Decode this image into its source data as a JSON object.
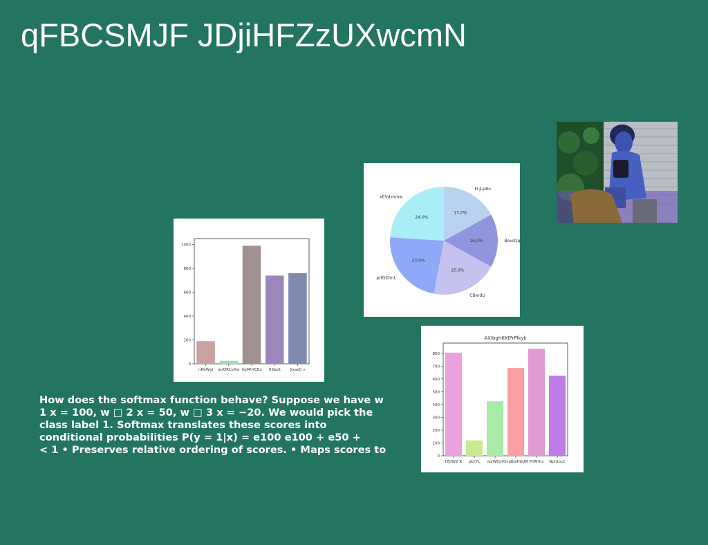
{
  "slide": {
    "title": "qFBCSMJF JDjiHFZzUXwcmN",
    "body_lines": [
      "How does the softmax function behave? Suppose we have w",
      "1 x = 100, w □ 2 x = 50, w □ 3 x = −20. We would pick the",
      "class label 1. Softmax translates these scores into",
      "conditional probabilities P(y = 1|x) = e100 e100 + e50 +",
      "< 1 • Preserves relative ordering of scores. • Maps scores to"
    ]
  },
  "photo": {
    "icon": "person-with-camera-photo"
  },
  "chart_data": [
    {
      "type": "bar",
      "title": "",
      "categories": [
        "nRbWgi",
        "aUQRCpXw",
        "XqMhYCEa",
        "HSbsIt",
        "SxasD y"
      ],
      "values": [
        190,
        25,
        990,
        740,
        760
      ],
      "colors": [
        "#c9a1a1",
        "#9de0b6",
        "#a09090",
        "#9b86bd",
        "#8089b0"
      ],
      "ylim": [
        0,
        1050
      ],
      "yticks": [
        "0",
        "200",
        "400",
        "600",
        "800",
        "1000"
      ],
      "ytick_values": [
        0,
        200,
        400,
        600,
        800,
        1000
      ]
    },
    {
      "type": "pie",
      "title": "",
      "labels": [
        "FLjLpBo",
        "BevsQqVODf",
        "CBardU",
        "prfGlOmL",
        "vEVdshmw"
      ],
      "values": [
        17.0,
        16.0,
        20.0,
        23.0,
        24.0
      ],
      "pct_labels": [
        "17.0%",
        "16.0%",
        "20.0%",
        "23.0%",
        "24.0%"
      ],
      "colors": [
        "#b7d3f1",
        "#8f96dd",
        "#c6c2ef",
        "#8ea9f7",
        "#a9eef6"
      ]
    },
    {
      "type": "bar",
      "title": "AXIbghKKIPrPlkyk",
      "categories": [
        "IZDWZ K",
        "gkCYL",
        "noIWEsY",
        "QxgBojHbUM",
        "PtMHhs",
        "NpIUoLC"
      ],
      "values": [
        805,
        120,
        425,
        685,
        835,
        625
      ],
      "colors": [
        "#eba0e0",
        "#c8eb8f",
        "#a6eba6",
        "#fb9fa2",
        "#e19ad3",
        "#c07ce6"
      ],
      "ylim": [
        0,
        880
      ],
      "yticks": [
        "0",
        "100",
        "200",
        "300",
        "400",
        "500",
        "600",
        "700",
        "800"
      ],
      "ytick_values": [
        0,
        100,
        200,
        300,
        400,
        500,
        600,
        700,
        800
      ]
    }
  ]
}
